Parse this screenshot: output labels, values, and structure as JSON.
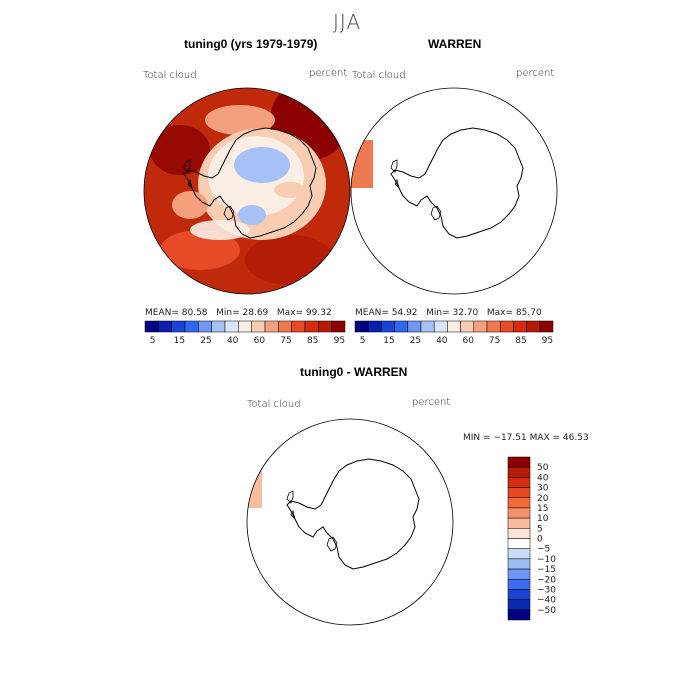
{
  "title": "JJA",
  "panels": [
    {
      "id": "model",
      "title": "tuning0 (yrs 1979-1979)",
      "variable": "Total cloud",
      "units": "percent",
      "mean_label": "MEAN=",
      "mean": "80.58",
      "min_label": "Min=",
      "min": "28.69",
      "max_label": "Max=",
      "max": "99.32"
    },
    {
      "id": "obs",
      "title": "WARREN",
      "variable": "Total cloud",
      "units": "percent",
      "mean_label": "MEAN=",
      "mean": "54.92",
      "min_label": "Min=",
      "min": "32.70",
      "max_label": "Max=",
      "max": "85.70"
    },
    {
      "id": "diff",
      "title": "tuning0 - WARREN",
      "variable": "Total cloud",
      "units": "percent",
      "minmax_text": "MIN = −17.51  MAX =  46.53"
    }
  ],
  "colorbar_top": {
    "labels": [
      "5",
      "15",
      "25",
      "40",
      "60",
      "75",
      "85",
      "95"
    ],
    "colors": [
      "#000080",
      "#0a1fb0",
      "#1a44d6",
      "#3366f0",
      "#6e96f2",
      "#a6c1f5",
      "#d8e6fa",
      "#fbeee4",
      "#f9cdb2",
      "#f4a07c",
      "#ee7a52",
      "#e64a26",
      "#d62c0e",
      "#b31c06",
      "#8b0000"
    ]
  },
  "colorbar_diff": {
    "labels": [
      "50",
      "40",
      "30",
      "20",
      "15",
      "10",
      "5",
      "0",
      "−5",
      "−10",
      "−15",
      "−20",
      "−30",
      "−40",
      "−50"
    ],
    "colors": [
      "#8b0000",
      "#b31c06",
      "#d62c0e",
      "#e84a20",
      "#f16a3c",
      "#f5926a",
      "#f9bc9c",
      "#fde5d6",
      "#ffffff",
      "#c9dcf6",
      "#9dbdf3",
      "#6e96f2",
      "#3f6cf0",
      "#1a44d6",
      "#0a28b0",
      "#000080"
    ]
  }
}
